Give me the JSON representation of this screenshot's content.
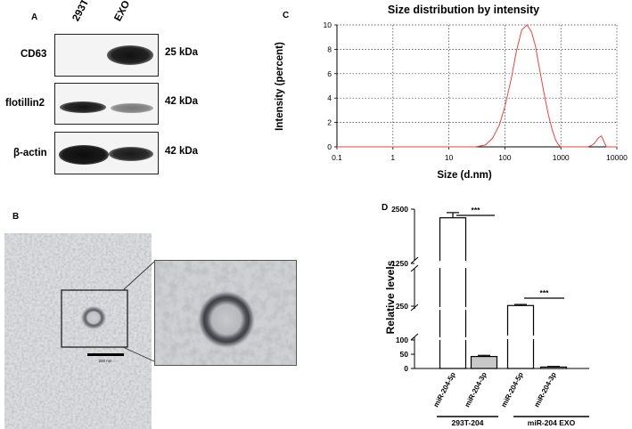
{
  "panels": {
    "a": "A",
    "b": "B",
    "c": "C",
    "d": "D"
  },
  "western_blot": {
    "lanes": [
      "293T",
      "EXO"
    ],
    "rows": [
      {
        "protein": "CD63",
        "size": "25 kDa"
      },
      {
        "protein": "flotillin2",
        "size": "42 kDa"
      },
      {
        "protein": "β-actin",
        "size": "42 kDa"
      }
    ]
  },
  "tem": {
    "scale_bar": "200 nm"
  },
  "chart_data": [
    {
      "type": "line",
      "title": "Size distribution by intensity",
      "xlabel": "Size (d.nm)",
      "ylabel": "Intensity (percent)",
      "x_scale": "log",
      "xlim": [
        0.1,
        10000
      ],
      "ylim": [
        0,
        10
      ],
      "x_ticks": [
        "0.1",
        "1",
        "10",
        "100",
        "1000",
        "10000"
      ],
      "y_ticks": [
        "0",
        "2",
        "4",
        "6",
        "8",
        "10"
      ],
      "grid": true,
      "series": [
        {
          "color": "#e8453c",
          "x": [
            0.1,
            10,
            30,
            45,
            60,
            80,
            100,
            130,
            160,
            200,
            250,
            300,
            350,
            420,
            500,
            600,
            700,
            800,
            900,
            1000,
            2000,
            3000,
            3500,
            4000,
            4700,
            5300,
            5800,
            6500,
            10000
          ],
          "y": [
            0,
            0,
            0,
            0.15,
            0.7,
            1.8,
            3.3,
            5.6,
            7.8,
            9.6,
            10,
            9.4,
            8.3,
            6.3,
            4.4,
            2.6,
            1.4,
            0.6,
            0.2,
            0,
            0,
            0,
            0.1,
            0.3,
            0.75,
            0.9,
            0.5,
            0,
            0
          ]
        }
      ]
    },
    {
      "type": "bar",
      "ylabel": "Relative levels",
      "y_ticks": [
        "0",
        "50",
        "100",
        "250",
        "1250",
        "2500"
      ],
      "categories": [
        "miR-204-5p",
        "miR-204-3p",
        "miR-204-5p",
        "miR-204-3p"
      ],
      "groups": [
        "293T-204",
        "miR-204 EXO"
      ],
      "values": [
        2300,
        42,
        265,
        5
      ],
      "errors": [
        120,
        4,
        25,
        2
      ],
      "fills": [
        "#ffffff",
        "#c8c8c8",
        "#ffffff",
        "#ffffff"
      ],
      "significance": [
        "***",
        "***"
      ]
    }
  ]
}
